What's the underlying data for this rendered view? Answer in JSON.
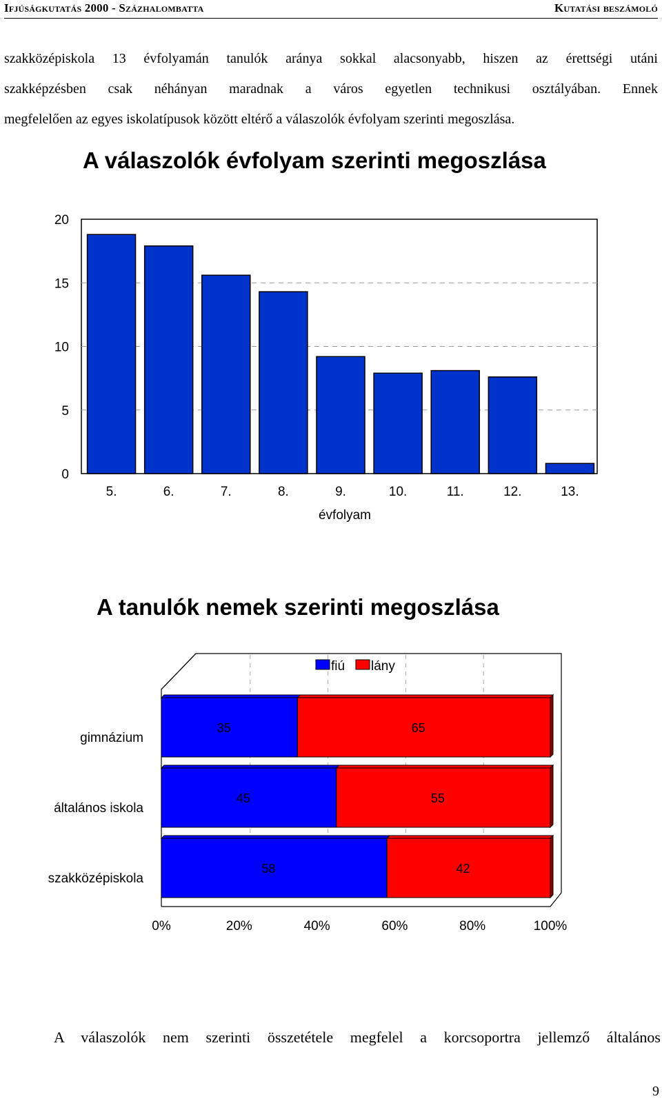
{
  "header": {
    "left": "Ifjúságkutatás 2000 - Százhalombatta",
    "right": "Kutatási beszámoló"
  },
  "intro_lines": [
    "szakközépiskola 13 évfolyamán tanulók aránya sokkal alacsonyabb, hiszen az érettségi utáni",
    "szakképzésben csak néhányan maradnak a város egyetlen technikusi osztályában. Ennek",
    "megfelelően az egyes iskolatípusok között eltérő a válaszolók évfolyam szerinti megoszlása."
  ],
  "chart_data": [
    {
      "type": "bar",
      "title": "A válaszolók évfolyam szerinti  megoszlása",
      "xlabel": "évfolyam",
      "ylabel": "",
      "categories": [
        "5.",
        "6.",
        "7.",
        "8.",
        "9.",
        "10.",
        "11.",
        "12.",
        "13."
      ],
      "values": [
        18.8,
        17.9,
        15.6,
        14.3,
        9.2,
        7.9,
        8.1,
        7.6,
        0.8
      ],
      "ylim": [
        0,
        20
      ],
      "yticks": [
        "0",
        "5",
        "10",
        "15",
        "20"
      ],
      "grid": "dashed horizontal",
      "colors": {
        "bar": "#0033cc",
        "bar_edge": "#000000"
      }
    },
    {
      "type": "bar",
      "orientation": "horizontal-stacked-100",
      "title": "A tanulók nemek szerinti megoszlása",
      "legend": [
        "fiú",
        "lány"
      ],
      "legend_position": "top",
      "categories": [
        "gimnázium",
        "általános iskola",
        "szakközépiskola"
      ],
      "series": [
        {
          "name": "fiú",
          "values": [
            35,
            45,
            58
          ],
          "color": "#0000ff"
        },
        {
          "name": "lány",
          "values": [
            65,
            55,
            42
          ],
          "color": "#ff0000"
        }
      ],
      "xticks": [
        "0%",
        "20%",
        "40%",
        "60%",
        "80%",
        "100%"
      ],
      "xlim": [
        0,
        100
      ]
    }
  ],
  "bottom_text": "A válaszolók nem szerinti összetétele megfelel a korcsoportra jellemző általános",
  "page_number": "9"
}
